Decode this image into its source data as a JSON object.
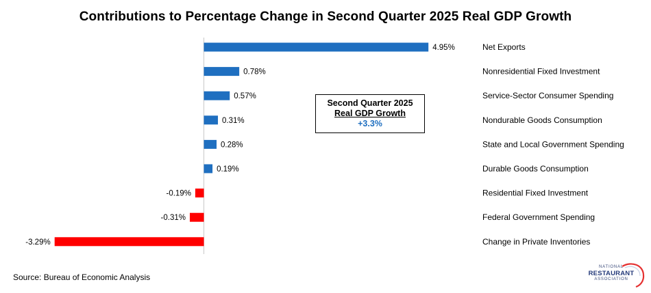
{
  "chart_data": {
    "type": "bar",
    "orientation": "horizontal",
    "title": "Contributions  to Percentage Change  in Second Quarter 2025 Real GDP Growth",
    "categories": [
      "Net Exports",
      "Nonresidential Fixed Investment",
      "Service-Sector Consumer Spending",
      "Nondurable Goods Consumption",
      "State and Local Government Spending",
      "Durable Goods Consumption",
      "Residential Fixed Investment",
      "Federal Government Spending",
      "Change in Private Inventories"
    ],
    "values": [
      4.95,
      0.78,
      0.57,
      0.31,
      0.28,
      0.19,
      -0.19,
      -0.31,
      -3.29
    ],
    "data_labels": [
      "4.95%",
      "0.78%",
      "0.57%",
      "0.31%",
      "0.28%",
      "0.19%",
      "-0.19%",
      "-0.31%",
      "-3.29%"
    ],
    "colors": {
      "positive": "#1f6fc0",
      "negative": "#ff0000"
    },
    "xlim": [
      -3.29,
      4.95
    ],
    "xlabel": "",
    "ylabel": "",
    "legend": "none",
    "grid": false,
    "category_labels_position": "right"
  },
  "callout": {
    "line1": "Second Quarter 2025",
    "line2": "Real GDP Growth",
    "line3": "+3.3%"
  },
  "source": "Source: Bureau of Economic Analysis",
  "logo": {
    "line1": "NATIONAL",
    "line2": "RESTAURANT",
    "line3": "ASSOCIATION"
  }
}
